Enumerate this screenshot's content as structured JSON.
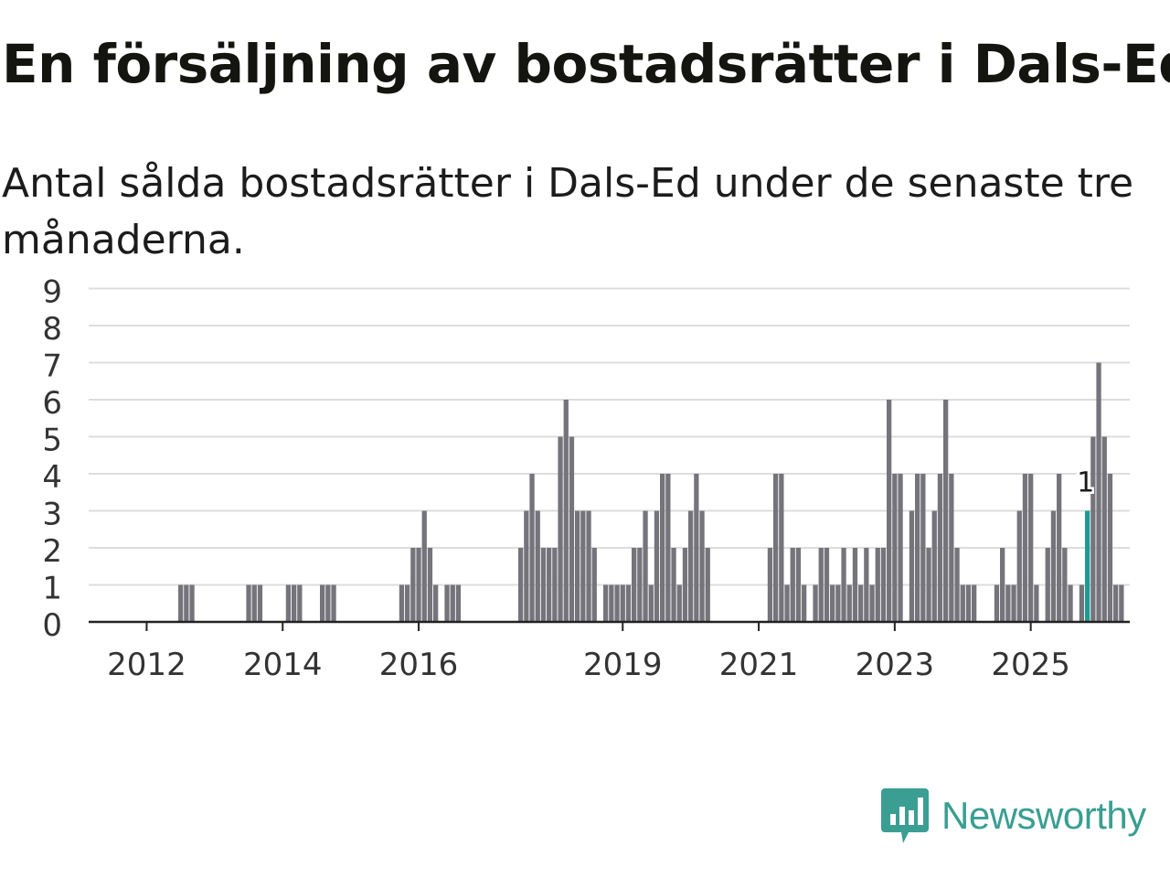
{
  "title": "En försäljning av bostadsrätter i Dals-Ed",
  "subtitle": "Antal sålda bostadsrätter i Dals-Ed under de senaste tre månaderna.",
  "brand": "Newsworthy",
  "colors": {
    "bar": "#75747b",
    "highlight": "#1d9b92",
    "grid": "#dddddd",
    "axis": "#222222"
  },
  "chart_data": {
    "type": "bar",
    "title": "En försäljning av bostadsrätter i Dals-Ed",
    "xlabel": "",
    "ylabel": "",
    "ylim": [
      0,
      9
    ],
    "y_ticks": [
      "0",
      "1",
      "2",
      "3",
      "4",
      "5",
      "6",
      "7",
      "8",
      "9"
    ],
    "x_start": {
      "year": 2011,
      "month": 4
    },
    "x_ticks": [
      {
        "label": "2012",
        "year": 2012,
        "month": 1
      },
      {
        "label": "2014",
        "year": 2014,
        "month": 1
      },
      {
        "label": "2016",
        "year": 2016,
        "month": 1
      },
      {
        "label": "2019",
        "year": 2019,
        "month": 1
      },
      {
        "label": "2021",
        "year": 2021,
        "month": 1
      },
      {
        "label": "2023",
        "year": 2023,
        "month": 1
      },
      {
        "label": "2025",
        "year": 2025,
        "month": 1
      }
    ],
    "values": [
      0,
      0,
      0,
      0,
      0,
      0,
      0,
      0,
      0,
      0,
      0,
      0,
      0,
      0,
      0,
      1,
      1,
      1,
      0,
      0,
      0,
      0,
      0,
      0,
      0,
      0,
      0,
      1,
      1,
      1,
      0,
      0,
      0,
      0,
      1,
      1,
      1,
      0,
      0,
      0,
      1,
      1,
      1,
      0,
      0,
      0,
      0,
      0,
      0,
      0,
      0,
      0,
      0,
      0,
      1,
      1,
      2,
      2,
      3,
      2,
      1,
      0,
      1,
      1,
      1,
      0,
      0,
      0,
      0,
      0,
      0,
      0,
      0,
      0,
      0,
      2,
      3,
      4,
      3,
      2,
      2,
      2,
      5,
      6,
      5,
      3,
      3,
      3,
      2,
      0,
      1,
      1,
      1,
      1,
      1,
      2,
      2,
      3,
      1,
      3,
      4,
      4,
      2,
      1,
      2,
      3,
      4,
      3,
      2,
      0,
      0,
      0,
      0,
      0,
      0,
      0,
      0,
      0,
      0,
      2,
      4,
      4,
      1,
      2,
      2,
      1,
      0,
      1,
      2,
      2,
      1,
      1,
      2,
      1,
      2,
      1,
      2,
      1,
      2,
      2,
      6,
      4,
      4,
      0,
      3,
      4,
      4,
      2,
      3,
      4,
      6,
      4,
      2,
      1,
      1,
      1,
      0,
      0,
      0,
      1,
      2,
      1,
      1,
      3,
      4,
      4,
      1,
      0,
      2,
      3,
      4,
      2,
      1,
      0,
      1,
      3,
      5,
      7,
      5,
      4,
      1,
      1
    ],
    "highlight_index": 175,
    "annotation": "1"
  }
}
